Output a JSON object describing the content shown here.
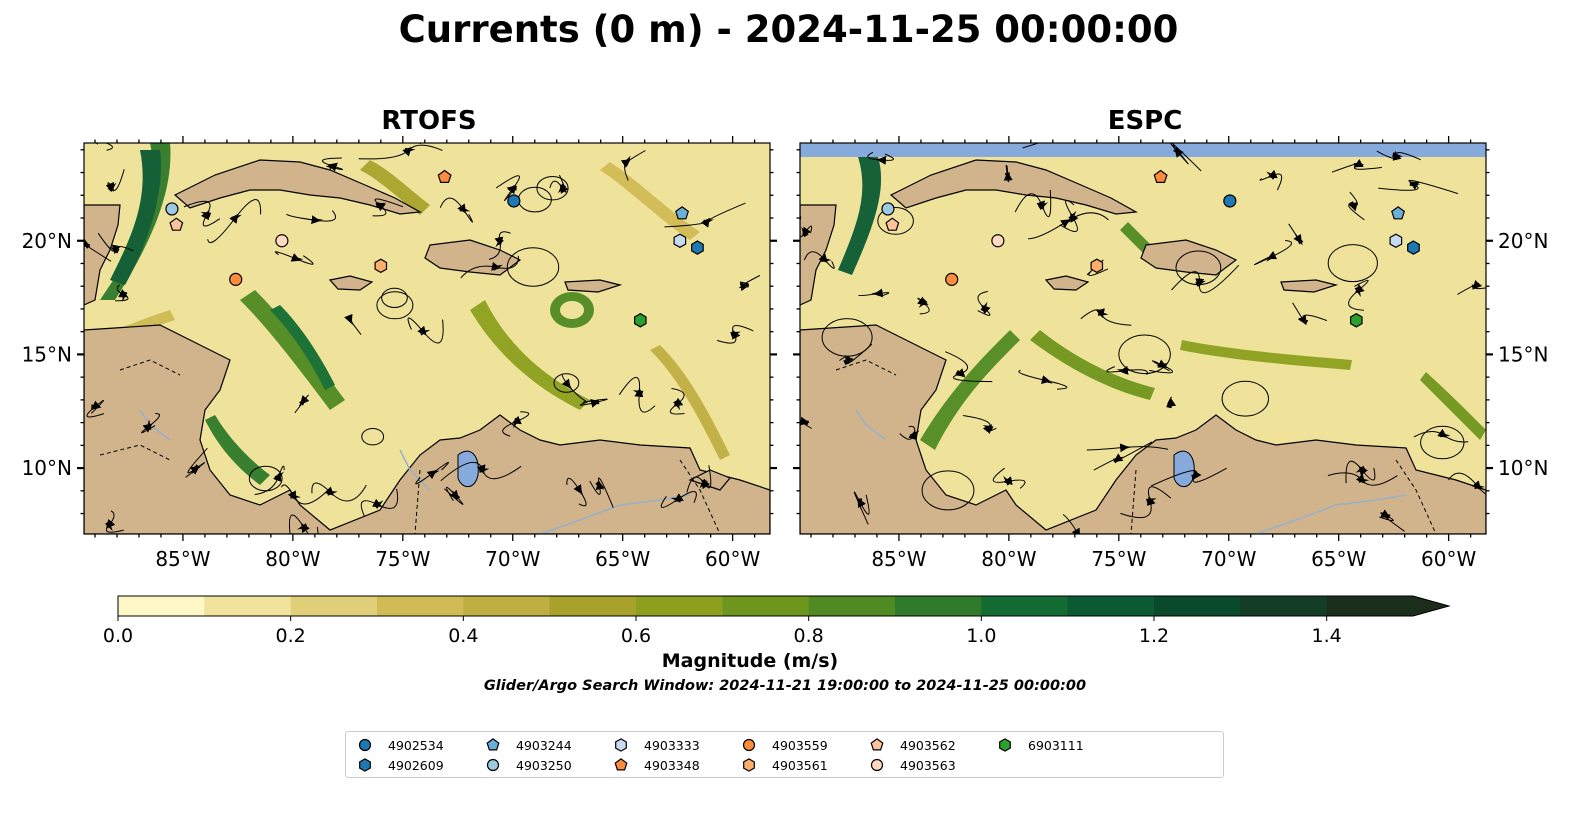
{
  "title": "Currents (0 m) - 2024-11-25 00:00:00",
  "panels": [
    {
      "title": "RTOFS"
    },
    {
      "title": "ESPC"
    }
  ],
  "axes": {
    "lon_ticks": [
      "85°W",
      "80°W",
      "75°W",
      "70°W",
      "65°W",
      "60°W"
    ],
    "lon_values": [
      -85,
      -80,
      -75,
      -70,
      -65,
      -60
    ],
    "lat_ticks": [
      "20°N",
      "15°N",
      "10°N"
    ],
    "lat_values": [
      20,
      15,
      10
    ],
    "lon_range": [
      -89.5,
      -58.3
    ],
    "lat_range": [
      7.1,
      24.3
    ]
  },
  "colorbar": {
    "label": "Magnitude (m/s)",
    "tick_labels": [
      "0.0",
      "0.2",
      "0.4",
      "0.6",
      "0.8",
      "1.0",
      "1.2",
      "1.4"
    ],
    "range": [
      0,
      1.5
    ],
    "extend": "max",
    "colors": [
      "#fdf7c6",
      "#f0e39c",
      "#e0cf78",
      "#d0bb55",
      "#bfae42",
      "#a8a22c",
      "#8ca01e",
      "#6f961c",
      "#4f8a22",
      "#2f7a2b",
      "#126c33",
      "#0b5a33",
      "#0a4a2c",
      "#143d26",
      "#1a2e1b"
    ]
  },
  "search_window": "Glider/Argo Search Window: 2024-11-21 19:00:00 to 2024-11-25 00:00:00",
  "land_color": "#d2b48c",
  "lake_color": "#87aadd",
  "legend": [
    {
      "id": "4902534",
      "marker": "circle",
      "color": "#1f77b4"
    },
    {
      "id": "4902609",
      "marker": "hexagon",
      "color": "#1f77b4"
    },
    {
      "id": "4903244",
      "marker": "pentagon",
      "color": "#6baed6"
    },
    {
      "id": "4903250",
      "marker": "circle",
      "color": "#9ecae1"
    },
    {
      "id": "4903333",
      "marker": "hexagon",
      "color": "#c6dbef"
    },
    {
      "id": "4903348",
      "marker": "pentagon",
      "color": "#fd8d3c"
    },
    {
      "id": "4903559",
      "marker": "circle",
      "color": "#fd8d3c"
    },
    {
      "id": "4903561",
      "marker": "hexagon",
      "color": "#fdae6b"
    },
    {
      "id": "4903562",
      "marker": "pentagon",
      "color": "#fdc49b"
    },
    {
      "id": "4903563",
      "marker": "circle",
      "color": "#fdd9bf"
    },
    {
      "id": "6903111",
      "marker": "hexagon",
      "color": "#2ca02c"
    }
  ],
  "floats": [
    {
      "id": "4902534",
      "lon": -69.95,
      "lat": 21.75
    },
    {
      "id": "4902609",
      "lon": -61.6,
      "lat": 19.7
    },
    {
      "id": "4903244",
      "lon": -62.3,
      "lat": 21.2
    },
    {
      "id": "4903250",
      "lon": -85.5,
      "lat": 21.4
    },
    {
      "id": "4903333",
      "lon": -62.4,
      "lat": 20.0
    },
    {
      "id": "4903348",
      "lon": -73.1,
      "lat": 22.8
    },
    {
      "id": "4903559",
      "lon": -82.6,
      "lat": 18.3
    },
    {
      "id": "4903561",
      "lon": -76.0,
      "lat": 18.9
    },
    {
      "id": "4903562",
      "lon": -85.3,
      "lat": 20.7
    },
    {
      "id": "4903563",
      "lon": -80.5,
      "lat": 20.0
    },
    {
      "id": "6903111",
      "lon": -64.2,
      "lat": 16.5
    }
  ]
}
